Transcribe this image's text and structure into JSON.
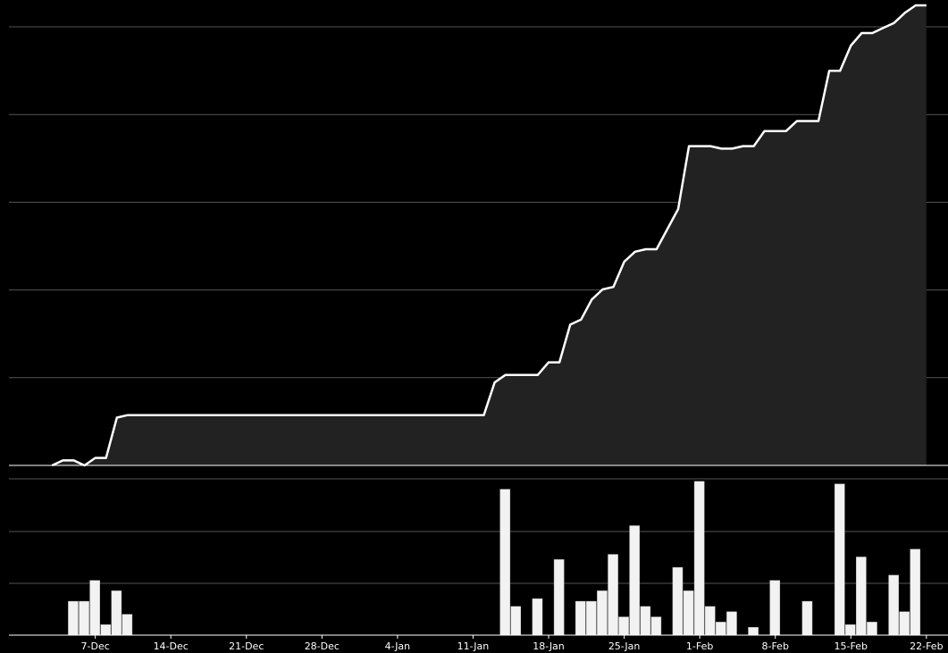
{
  "chart_data": [
    {
      "type": "area",
      "title": "",
      "xlabel": "",
      "ylabel": "",
      "grid": true,
      "colors": {
        "line": "#ffffff",
        "fill": "#222222",
        "grid": "#555555",
        "background": "#000000"
      },
      "x": [
        "2020-12-03",
        "2020-12-04",
        "2020-12-05",
        "2020-12-06",
        "2020-12-07",
        "2020-12-08",
        "2020-12-09",
        "2020-12-10",
        "2020-12-11",
        "2020-12-12",
        "2020-12-13",
        "2021-01-12",
        "2021-01-13",
        "2021-01-14",
        "2021-01-15",
        "2021-01-16",
        "2021-01-17",
        "2021-01-18",
        "2021-01-19",
        "2021-01-20",
        "2021-01-21",
        "2021-01-22",
        "2021-01-23",
        "2021-01-24",
        "2021-01-25",
        "2021-01-26",
        "2021-01-27",
        "2021-01-28",
        "2021-01-29",
        "2021-01-30",
        "2021-01-31",
        "2021-02-01",
        "2021-02-02",
        "2021-02-03",
        "2021-02-04",
        "2021-02-05",
        "2021-02-06",
        "2021-02-07",
        "2021-02-08",
        "2021-02-09",
        "2021-02-10",
        "2021-02-11",
        "2021-02-12",
        "2021-02-13",
        "2021-02-14",
        "2021-02-15",
        "2021-02-16",
        "2021-02-17",
        "2021-02-18",
        "2021-02-19",
        "2021-02-20",
        "2021-02-21",
        "2021-02-22"
      ],
      "values": [
        0,
        2,
        2,
        0,
        3,
        3,
        19,
        20,
        20,
        20,
        20,
        20,
        33,
        36,
        36,
        36,
        36,
        41,
        41,
        56,
        58,
        66,
        70,
        71,
        81,
        85,
        86,
        86,
        94,
        102,
        127,
        127,
        127,
        126,
        126,
        127,
        127,
        133,
        133,
        133,
        137,
        137,
        137,
        157,
        157,
        167,
        172,
        172,
        174,
        176,
        180,
        183,
        183
      ],
      "ylim": [
        0,
        183
      ]
    },
    {
      "type": "bar",
      "title": "",
      "xlabel": "",
      "ylabel": "",
      "grid": true,
      "colors": {
        "bar": "#f2f2f2",
        "grid": "#555555"
      },
      "categories": [
        "2020-12-05",
        "2020-12-06",
        "2020-12-07",
        "2020-12-08",
        "2020-12-09",
        "2020-12-10",
        "2021-01-14",
        "2021-01-15",
        "2021-01-17",
        "2021-01-19",
        "2021-01-21",
        "2021-01-22",
        "2021-01-23",
        "2021-01-24",
        "2021-01-25",
        "2021-01-26",
        "2021-01-27",
        "2021-01-28",
        "2021-01-30",
        "2021-01-31",
        "2021-02-01",
        "2021-02-02",
        "2021-02-03",
        "2021-02-04",
        "2021-02-06",
        "2021-02-08",
        "2021-02-11",
        "2021-02-14",
        "2021-02-15",
        "2021-02-16",
        "2021-02-17",
        "2021-02-19",
        "2021-02-20",
        "2021-02-21"
      ],
      "values": [
        6.5,
        6.5,
        10.5,
        2,
        8.5,
        4,
        28,
        5.5,
        7,
        14.5,
        6.5,
        6.5,
        8.5,
        15.5,
        3.5,
        21,
        5.5,
        3.5,
        13,
        8.5,
        29.5,
        5.5,
        2.5,
        4.5,
        1.5,
        10.5,
        6.5,
        29,
        2,
        15,
        2.5,
        11.5,
        4.5,
        16.5
      ],
      "ylim": [
        0,
        30
      ]
    }
  ],
  "x_axis": {
    "range": [
      "2020-11-29",
      "2021-02-24"
    ],
    "ticks": [
      {
        "date": "2020-12-07",
        "label": "7-Dec"
      },
      {
        "date": "2020-12-14",
        "label": "14-Dec"
      },
      {
        "date": "2020-12-21",
        "label": "21-Dec"
      },
      {
        "date": "2020-12-28",
        "label": "28-Dec"
      },
      {
        "date": "2021-01-04",
        "label": "4-Jan"
      },
      {
        "date": "2021-01-11",
        "label": "11-Jan"
      },
      {
        "date": "2021-01-18",
        "label": "18-Jan"
      },
      {
        "date": "2021-01-25",
        "label": "25-Jan"
      },
      {
        "date": "2021-02-01",
        "label": "1-Feb"
      },
      {
        "date": "2021-02-08",
        "label": "8-Feb"
      },
      {
        "date": "2021-02-15",
        "label": "15-Feb"
      },
      {
        "date": "2021-02-22",
        "label": "22-Feb"
      }
    ]
  }
}
